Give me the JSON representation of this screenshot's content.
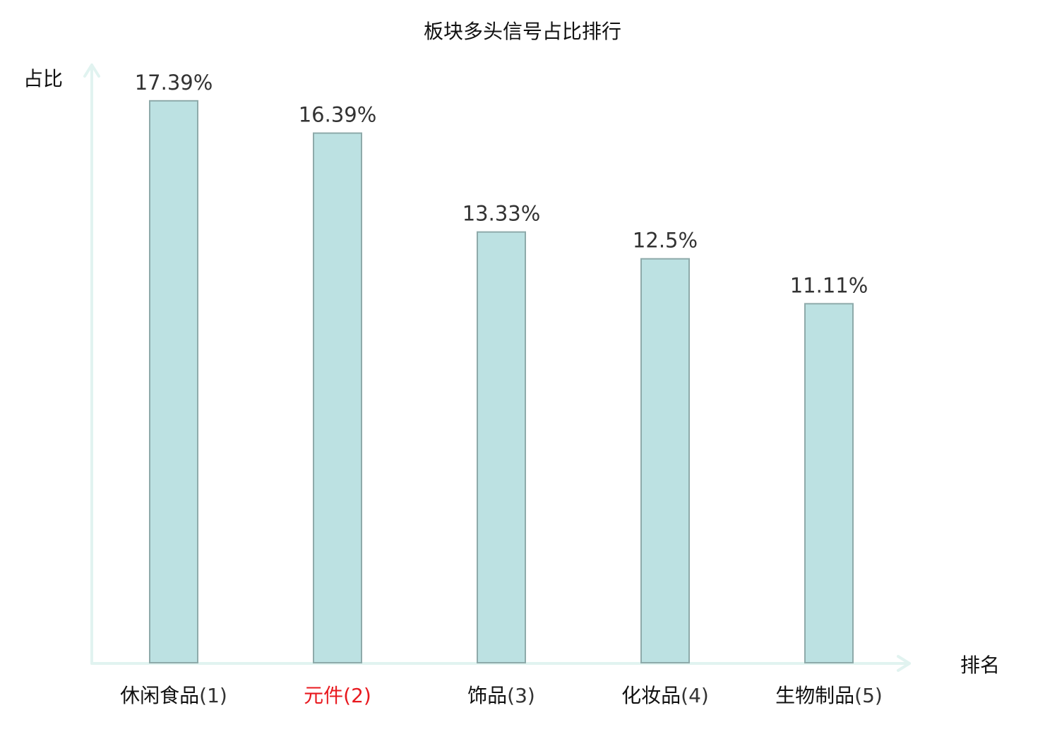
{
  "chart_data": {
    "type": "bar",
    "title": "板块多头信号占比排行",
    "xlabel": "排名",
    "ylabel": "占比",
    "categories": [
      "休闲食品",
      "元件",
      "饰品",
      "化妆品",
      "生物制品"
    ],
    "ranks": [
      "(1)",
      "(2)",
      "(3)",
      "(4)",
      "(5)"
    ],
    "values": [
      17.39,
      16.39,
      13.33,
      12.5,
      11.11
    ],
    "value_labels": [
      "17.39%",
      "16.39%",
      "13.33%",
      "12.5%",
      "11.11%"
    ],
    "highlight_index": 1,
    "ylim": [
      0,
      18.5
    ],
    "grid": false,
    "legend": "none"
  },
  "colors": {
    "bar_fill": "#bce1e2",
    "bar_stroke": "#8eaaaa",
    "axis": "#e1f3f0",
    "highlight_text": "#e8191f",
    "text": "#111111"
  }
}
